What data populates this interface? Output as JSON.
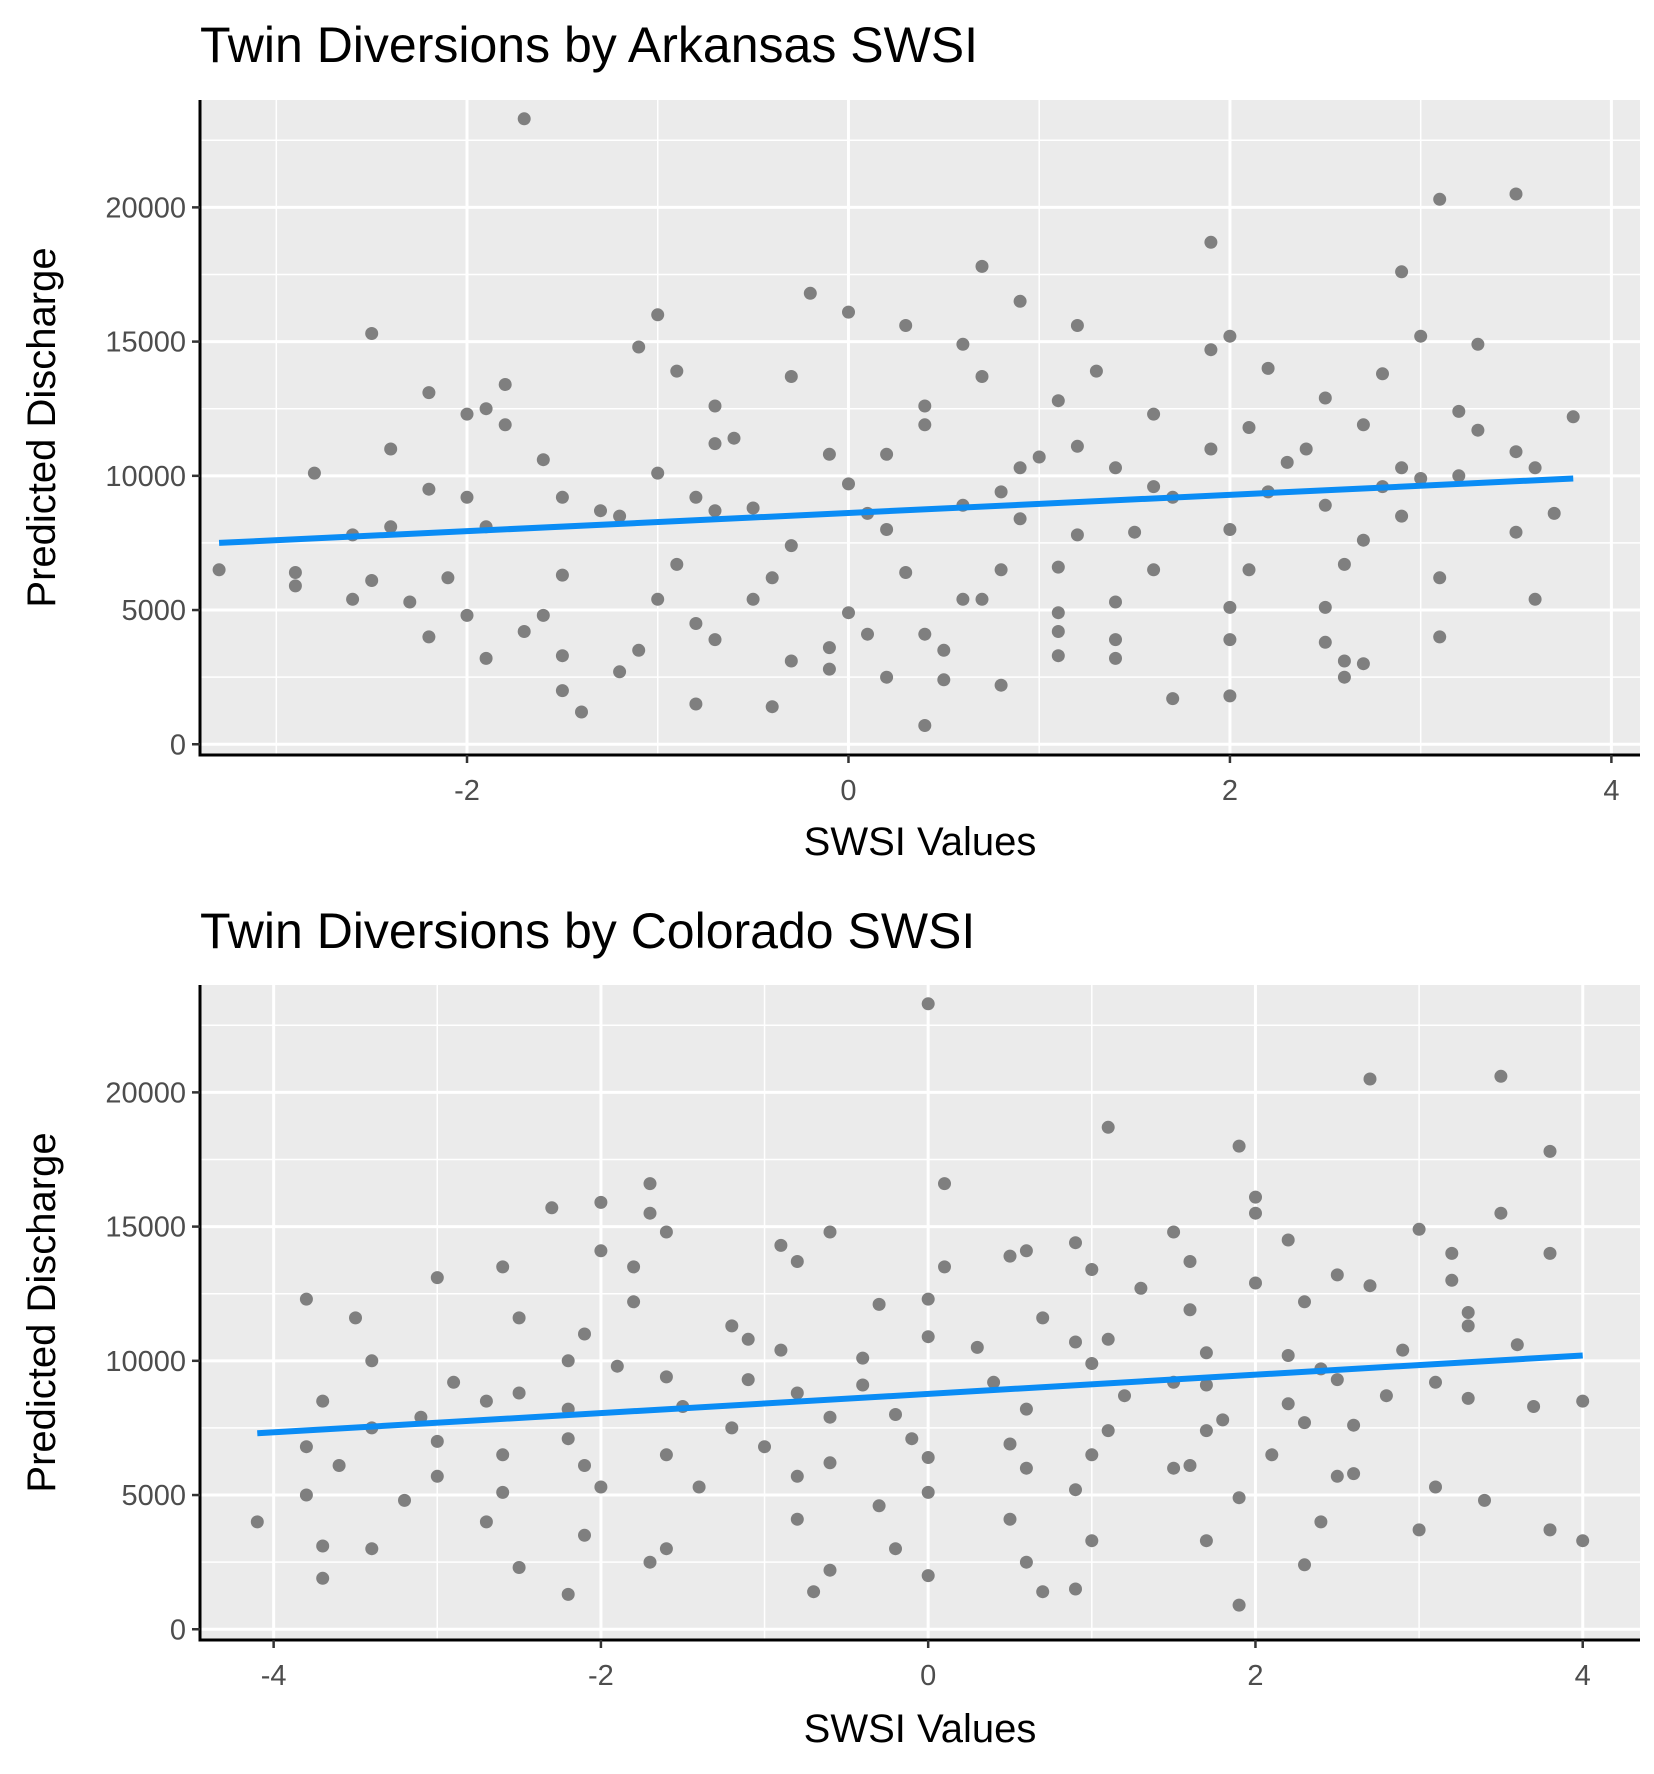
{
  "colors": {
    "panel_background": "#ebebeb",
    "grid": "#ffffff",
    "points": "#7f7f7f",
    "trend_line": "#0a8cf5",
    "axis_line": "#000000",
    "tick_text": "#4d4d4d"
  },
  "chart_data": [
    {
      "type": "scatter",
      "title": "Twin Diversions by Arkansas SWSI",
      "xlabel": "SWSI Values",
      "ylabel": "Predicted Discharge",
      "xlim": [
        -3.4,
        4.15
      ],
      "ylim": [
        -400,
        24000
      ],
      "x_ticks": [
        -2,
        0,
        2,
        4
      ],
      "x_tick_labels": [
        "-2",
        "0",
        "2",
        "4"
      ],
      "y_ticks": [
        0,
        5000,
        10000,
        15000,
        20000
      ],
      "y_tick_labels": [
        "0",
        "5000",
        "10000",
        "15000",
        "20000"
      ],
      "grid": true,
      "legend": "none",
      "trend": {
        "x": [
          -3.3,
          3.8
        ],
        "y": [
          7500,
          9900
        ]
      },
      "points": [
        [
          -1.7,
          23300
        ],
        [
          3.1,
          20300
        ],
        [
          3.5,
          20500
        ],
        [
          1.9,
          18700
        ],
        [
          2.9,
          17600
        ],
        [
          0.7,
          17800
        ],
        [
          -0.2,
          16800
        ],
        [
          0.0,
          16100
        ],
        [
          -1.0,
          16000
        ],
        [
          0.9,
          16500
        ],
        [
          -2.5,
          15300
        ],
        [
          0.3,
          15600
        ],
        [
          1.2,
          15600
        ],
        [
          2.0,
          15200
        ],
        [
          3.0,
          15200
        ],
        [
          0.6,
          14900
        ],
        [
          -1.1,
          14800
        ],
        [
          1.9,
          14700
        ],
        [
          3.3,
          14900
        ],
        [
          -0.9,
          13900
        ],
        [
          -0.3,
          13700
        ],
        [
          0.7,
          13700
        ],
        [
          -2.2,
          13100
        ],
        [
          -1.8,
          13400
        ],
        [
          1.3,
          13900
        ],
        [
          2.2,
          14000
        ],
        [
          2.8,
          13800
        ],
        [
          -2.0,
          12300
        ],
        [
          -1.9,
          12500
        ],
        [
          -0.7,
          12600
        ],
        [
          0.4,
          12600
        ],
        [
          1.1,
          12800
        ],
        [
          1.6,
          12300
        ],
        [
          2.5,
          12900
        ],
        [
          3.2,
          12400
        ],
        [
          3.8,
          12200
        ],
        [
          -1.8,
          11900
        ],
        [
          -0.7,
          11200
        ],
        [
          0.4,
          11900
        ],
        [
          1.2,
          11100
        ],
        [
          2.1,
          11800
        ],
        [
          2.7,
          11900
        ],
        [
          3.3,
          11700
        ],
        [
          -2.4,
          11000
        ],
        [
          -0.6,
          11400
        ],
        [
          0.2,
          10800
        ],
        [
          1.0,
          10700
        ],
        [
          1.9,
          11000
        ],
        [
          2.4,
          11000
        ],
        [
          3.0,
          9900
        ],
        [
          3.5,
          10900
        ],
        [
          -2.8,
          10100
        ],
        [
          -1.6,
          10600
        ],
        [
          -1.0,
          10100
        ],
        [
          -0.1,
          10800
        ],
        [
          0.9,
          10300
        ],
        [
          1.4,
          10300
        ],
        [
          2.3,
          10500
        ],
        [
          2.9,
          10300
        ],
        [
          3.6,
          10300
        ],
        [
          -2.2,
          9500
        ],
        [
          -1.5,
          9200
        ],
        [
          -0.8,
          9200
        ],
        [
          0.0,
          9700
        ],
        [
          0.8,
          9400
        ],
        [
          1.6,
          9600
        ],
        [
          2.2,
          9400
        ],
        [
          2.8,
          9600
        ],
        [
          3.2,
          10000
        ],
        [
          3.7,
          8600
        ],
        [
          -2.6,
          7800
        ],
        [
          -2.0,
          9200
        ],
        [
          -1.3,
          8700
        ],
        [
          -0.5,
          8800
        ],
        [
          0.1,
          8600
        ],
        [
          0.6,
          8900
        ],
        [
          1.2,
          7800
        ],
        [
          1.7,
          9200
        ],
        [
          2.5,
          8900
        ],
        [
          2.9,
          8500
        ],
        [
          3.5,
          7900
        ],
        [
          -3.3,
          6500
        ],
        [
          -2.9,
          6400
        ],
        [
          -2.4,
          8100
        ],
        [
          -1.9,
          8100
        ],
        [
          -1.2,
          8500
        ],
        [
          -0.7,
          8700
        ],
        [
          -0.3,
          7400
        ],
        [
          0.2,
          8000
        ],
        [
          0.9,
          8400
        ],
        [
          1.5,
          7900
        ],
        [
          2.0,
          8000
        ],
        [
          2.6,
          6700
        ],
        [
          3.1,
          6200
        ],
        [
          3.6,
          5400
        ],
        [
          -2.9,
          5900
        ],
        [
          -2.5,
          6100
        ],
        [
          -2.1,
          6200
        ],
        [
          -1.5,
          6300
        ],
        [
          -0.9,
          6700
        ],
        [
          -0.4,
          6200
        ],
        [
          0.3,
          6400
        ],
        [
          0.8,
          6500
        ],
        [
          1.1,
          6600
        ],
        [
          1.6,
          6500
        ],
        [
          2.1,
          6500
        ],
        [
          2.7,
          7600
        ],
        [
          -2.6,
          5400
        ],
        [
          -2.3,
          5300
        ],
        [
          -2.0,
          4800
        ],
        [
          -1.6,
          4800
        ],
        [
          -1.0,
          5400
        ],
        [
          -0.5,
          5400
        ],
        [
          0.0,
          4900
        ],
        [
          0.6,
          5400
        ],
        [
          1.1,
          4900
        ],
        [
          1.4,
          5300
        ],
        [
          2.0,
          5100
        ],
        [
          2.5,
          5100
        ],
        [
          -2.2,
          4000
        ],
        [
          -1.7,
          4200
        ],
        [
          -1.1,
          3500
        ],
        [
          -0.7,
          3900
        ],
        [
          -0.1,
          3600
        ],
        [
          0.4,
          4100
        ],
        [
          0.7,
          5400
        ],
        [
          1.1,
          4200
        ],
        [
          1.4,
          3900
        ],
        [
          2.0,
          3900
        ],
        [
          2.5,
          3800
        ],
        [
          3.1,
          4000
        ],
        [
          -1.9,
          3200
        ],
        [
          -1.5,
          3300
        ],
        [
          -1.2,
          2700
        ],
        [
          -0.8,
          4500
        ],
        [
          -0.3,
          3100
        ],
        [
          0.1,
          4100
        ],
        [
          0.5,
          3500
        ],
        [
          1.1,
          3300
        ],
        [
          1.4,
          3200
        ],
        [
          2.6,
          3100
        ],
        [
          2.7,
          3000
        ],
        [
          -1.5,
          2000
        ],
        [
          -1.4,
          1200
        ],
        [
          -0.8,
          1500
        ],
        [
          -0.4,
          1400
        ],
        [
          -0.1,
          2800
        ],
        [
          0.2,
          2500
        ],
        [
          0.5,
          2400
        ],
        [
          0.8,
          2200
        ],
        [
          1.7,
          1700
        ],
        [
          2.0,
          1800
        ],
        [
          2.6,
          2500
        ],
        [
          0.4,
          700
        ]
      ]
    },
    {
      "type": "scatter",
      "title": "Twin Diversions by Colorado SWSI",
      "xlabel": "SWSI Values",
      "ylabel": "Predicted Discharge",
      "xlim": [
        -4.45,
        4.35
      ],
      "ylim": [
        -400,
        24000
      ],
      "x_ticks": [
        -4,
        -2,
        0,
        2,
        4
      ],
      "x_tick_labels": [
        "-4",
        "-2",
        "0",
        "2",
        "4"
      ],
      "y_ticks": [
        0,
        5000,
        10000,
        15000,
        20000
      ],
      "y_tick_labels": [
        "0",
        "5000",
        "10000",
        "15000",
        "20000"
      ],
      "grid": true,
      "legend": "none",
      "trend": {
        "x": [
          -4.1,
          4.0
        ],
        "y": [
          7300,
          10200
        ]
      },
      "points": [
        [
          0.0,
          23300
        ],
        [
          2.7,
          20500
        ],
        [
          3.5,
          20600
        ],
        [
          1.1,
          18700
        ],
        [
          1.9,
          18000
        ],
        [
          3.8,
          17800
        ],
        [
          -1.7,
          16600
        ],
        [
          0.1,
          16600
        ],
        [
          2.0,
          16100
        ],
        [
          -2.0,
          15900
        ],
        [
          -2.3,
          15700
        ],
        [
          -1.7,
          15500
        ],
        [
          2.0,
          15500
        ],
        [
          3.0,
          14900
        ],
        [
          3.5,
          15500
        ],
        [
          -1.6,
          14800
        ],
        [
          -0.6,
          14800
        ],
        [
          0.9,
          14400
        ],
        [
          1.5,
          14800
        ],
        [
          2.2,
          14500
        ],
        [
          -2.0,
          14100
        ],
        [
          -0.9,
          14300
        ],
        [
          0.6,
          14100
        ],
        [
          1.6,
          13700
        ],
        [
          3.2,
          14000
        ],
        [
          3.8,
          14000
        ],
        [
          -3.0,
          13100
        ],
        [
          -2.6,
          13500
        ],
        [
          -1.8,
          13500
        ],
        [
          -0.8,
          13700
        ],
        [
          0.1,
          13500
        ],
        [
          1.0,
          13400
        ],
        [
          2.5,
          13200
        ],
        [
          3.2,
          13000
        ],
        [
          -3.8,
          12300
        ],
        [
          -1.8,
          12200
        ],
        [
          -0.3,
          12100
        ],
        [
          0.5,
          13900
        ],
        [
          1.3,
          12700
        ],
        [
          2.0,
          12900
        ],
        [
          2.7,
          12800
        ],
        [
          3.3,
          11800
        ],
        [
          -3.5,
          11600
        ],
        [
          -2.5,
          11600
        ],
        [
          -1.2,
          11300
        ],
        [
          0.0,
          12300
        ],
        [
          0.7,
          11600
        ],
        [
          1.6,
          11900
        ],
        [
          2.3,
          12200
        ],
        [
          3.3,
          11300
        ],
        [
          3.6,
          10600
        ],
        [
          -3.4,
          10000
        ],
        [
          -2.1,
          11000
        ],
        [
          -1.1,
          10800
        ],
        [
          -0.4,
          10100
        ],
        [
          0.3,
          10500
        ],
        [
          1.1,
          10800
        ],
        [
          1.7,
          10300
        ],
        [
          2.2,
          10200
        ],
        [
          2.9,
          10400
        ],
        [
          -2.9,
          9200
        ],
        [
          -2.2,
          10000
        ],
        [
          -1.6,
          9400
        ],
        [
          -0.9,
          10400
        ],
        [
          0.0,
          10900
        ],
        [
          0.9,
          10700
        ],
        [
          1.7,
          9100
        ],
        [
          2.5,
          9300
        ],
        [
          3.1,
          9200
        ],
        [
          -3.1,
          7900
        ],
        [
          -2.5,
          8800
        ],
        [
          -1.9,
          9800
        ],
        [
          -1.1,
          9300
        ],
        [
          -0.4,
          9100
        ],
        [
          0.4,
          9200
        ],
        [
          1.0,
          9900
        ],
        [
          1.5,
          9200
        ],
        [
          2.4,
          9700
        ],
        [
          2.8,
          8700
        ],
        [
          3.7,
          8300
        ],
        [
          -3.7,
          8500
        ],
        [
          -2.7,
          8500
        ],
        [
          -2.2,
          8200
        ],
        [
          -1.5,
          8300
        ],
        [
          -0.8,
          8800
        ],
        [
          -0.2,
          8000
        ],
        [
          0.6,
          8200
        ],
        [
          1.2,
          8700
        ],
        [
          1.8,
          7800
        ],
        [
          2.2,
          8400
        ],
        [
          3.3,
          8600
        ],
        [
          4.0,
          8500
        ],
        [
          -3.8,
          6800
        ],
        [
          -3.4,
          7500
        ],
        [
          -3.0,
          7000
        ],
        [
          -2.2,
          7100
        ],
        [
          -1.2,
          7500
        ],
        [
          -0.6,
          7900
        ],
        [
          -0.1,
          7100
        ],
        [
          0.5,
          6900
        ],
        [
          1.1,
          7400
        ],
        [
          1.7,
          7400
        ],
        [
          2.3,
          7700
        ],
        [
          2.6,
          7600
        ],
        [
          -3.8,
          5000
        ],
        [
          -3.6,
          6100
        ],
        [
          -3.0,
          5700
        ],
        [
          -2.6,
          6500
        ],
        [
          -2.1,
          6100
        ],
        [
          -1.6,
          6500
        ],
        [
          -1.0,
          6800
        ],
        [
          -0.6,
          6200
        ],
        [
          0.0,
          6400
        ],
        [
          0.6,
          6000
        ],
        [
          1.0,
          6500
        ],
        [
          1.6,
          6100
        ],
        [
          2.1,
          6500
        ],
        [
          2.6,
          5800
        ],
        [
          -3.2,
          4800
        ],
        [
          -2.6,
          5100
        ],
        [
          -2.0,
          5300
        ],
        [
          -1.4,
          5300
        ],
        [
          -0.8,
          5700
        ],
        [
          -0.3,
          4600
        ],
        [
          0.0,
          5100
        ],
        [
          0.9,
          5200
        ],
        [
          1.5,
          6000
        ],
        [
          1.9,
          4900
        ],
        [
          2.5,
          5700
        ],
        [
          3.1,
          5300
        ],
        [
          3.4,
          4800
        ],
        [
          -4.1,
          4000
        ],
        [
          -3.7,
          3100
        ],
        [
          -3.4,
          3000
        ],
        [
          -2.7,
          4000
        ],
        [
          -2.1,
          3500
        ],
        [
          -1.6,
          3000
        ],
        [
          -0.8,
          4100
        ],
        [
          -0.2,
          3000
        ],
        [
          0.5,
          4100
        ],
        [
          1.0,
          3300
        ],
        [
          1.7,
          3300
        ],
        [
          2.4,
          4000
        ],
        [
          3.0,
          3700
        ],
        [
          3.8,
          3700
        ],
        [
          4.0,
          3300
        ],
        [
          -3.7,
          1900
        ],
        [
          -2.5,
          2300
        ],
        [
          -1.7,
          2500
        ],
        [
          -0.6,
          2200
        ],
        [
          0.0,
          2000
        ],
        [
          0.6,
          2500
        ],
        [
          0.7,
          1400
        ],
        [
          0.9,
          1500
        ],
        [
          2.3,
          2400
        ],
        [
          -2.2,
          1300
        ],
        [
          -0.7,
          1400
        ],
        [
          1.9,
          900
        ]
      ]
    }
  ]
}
